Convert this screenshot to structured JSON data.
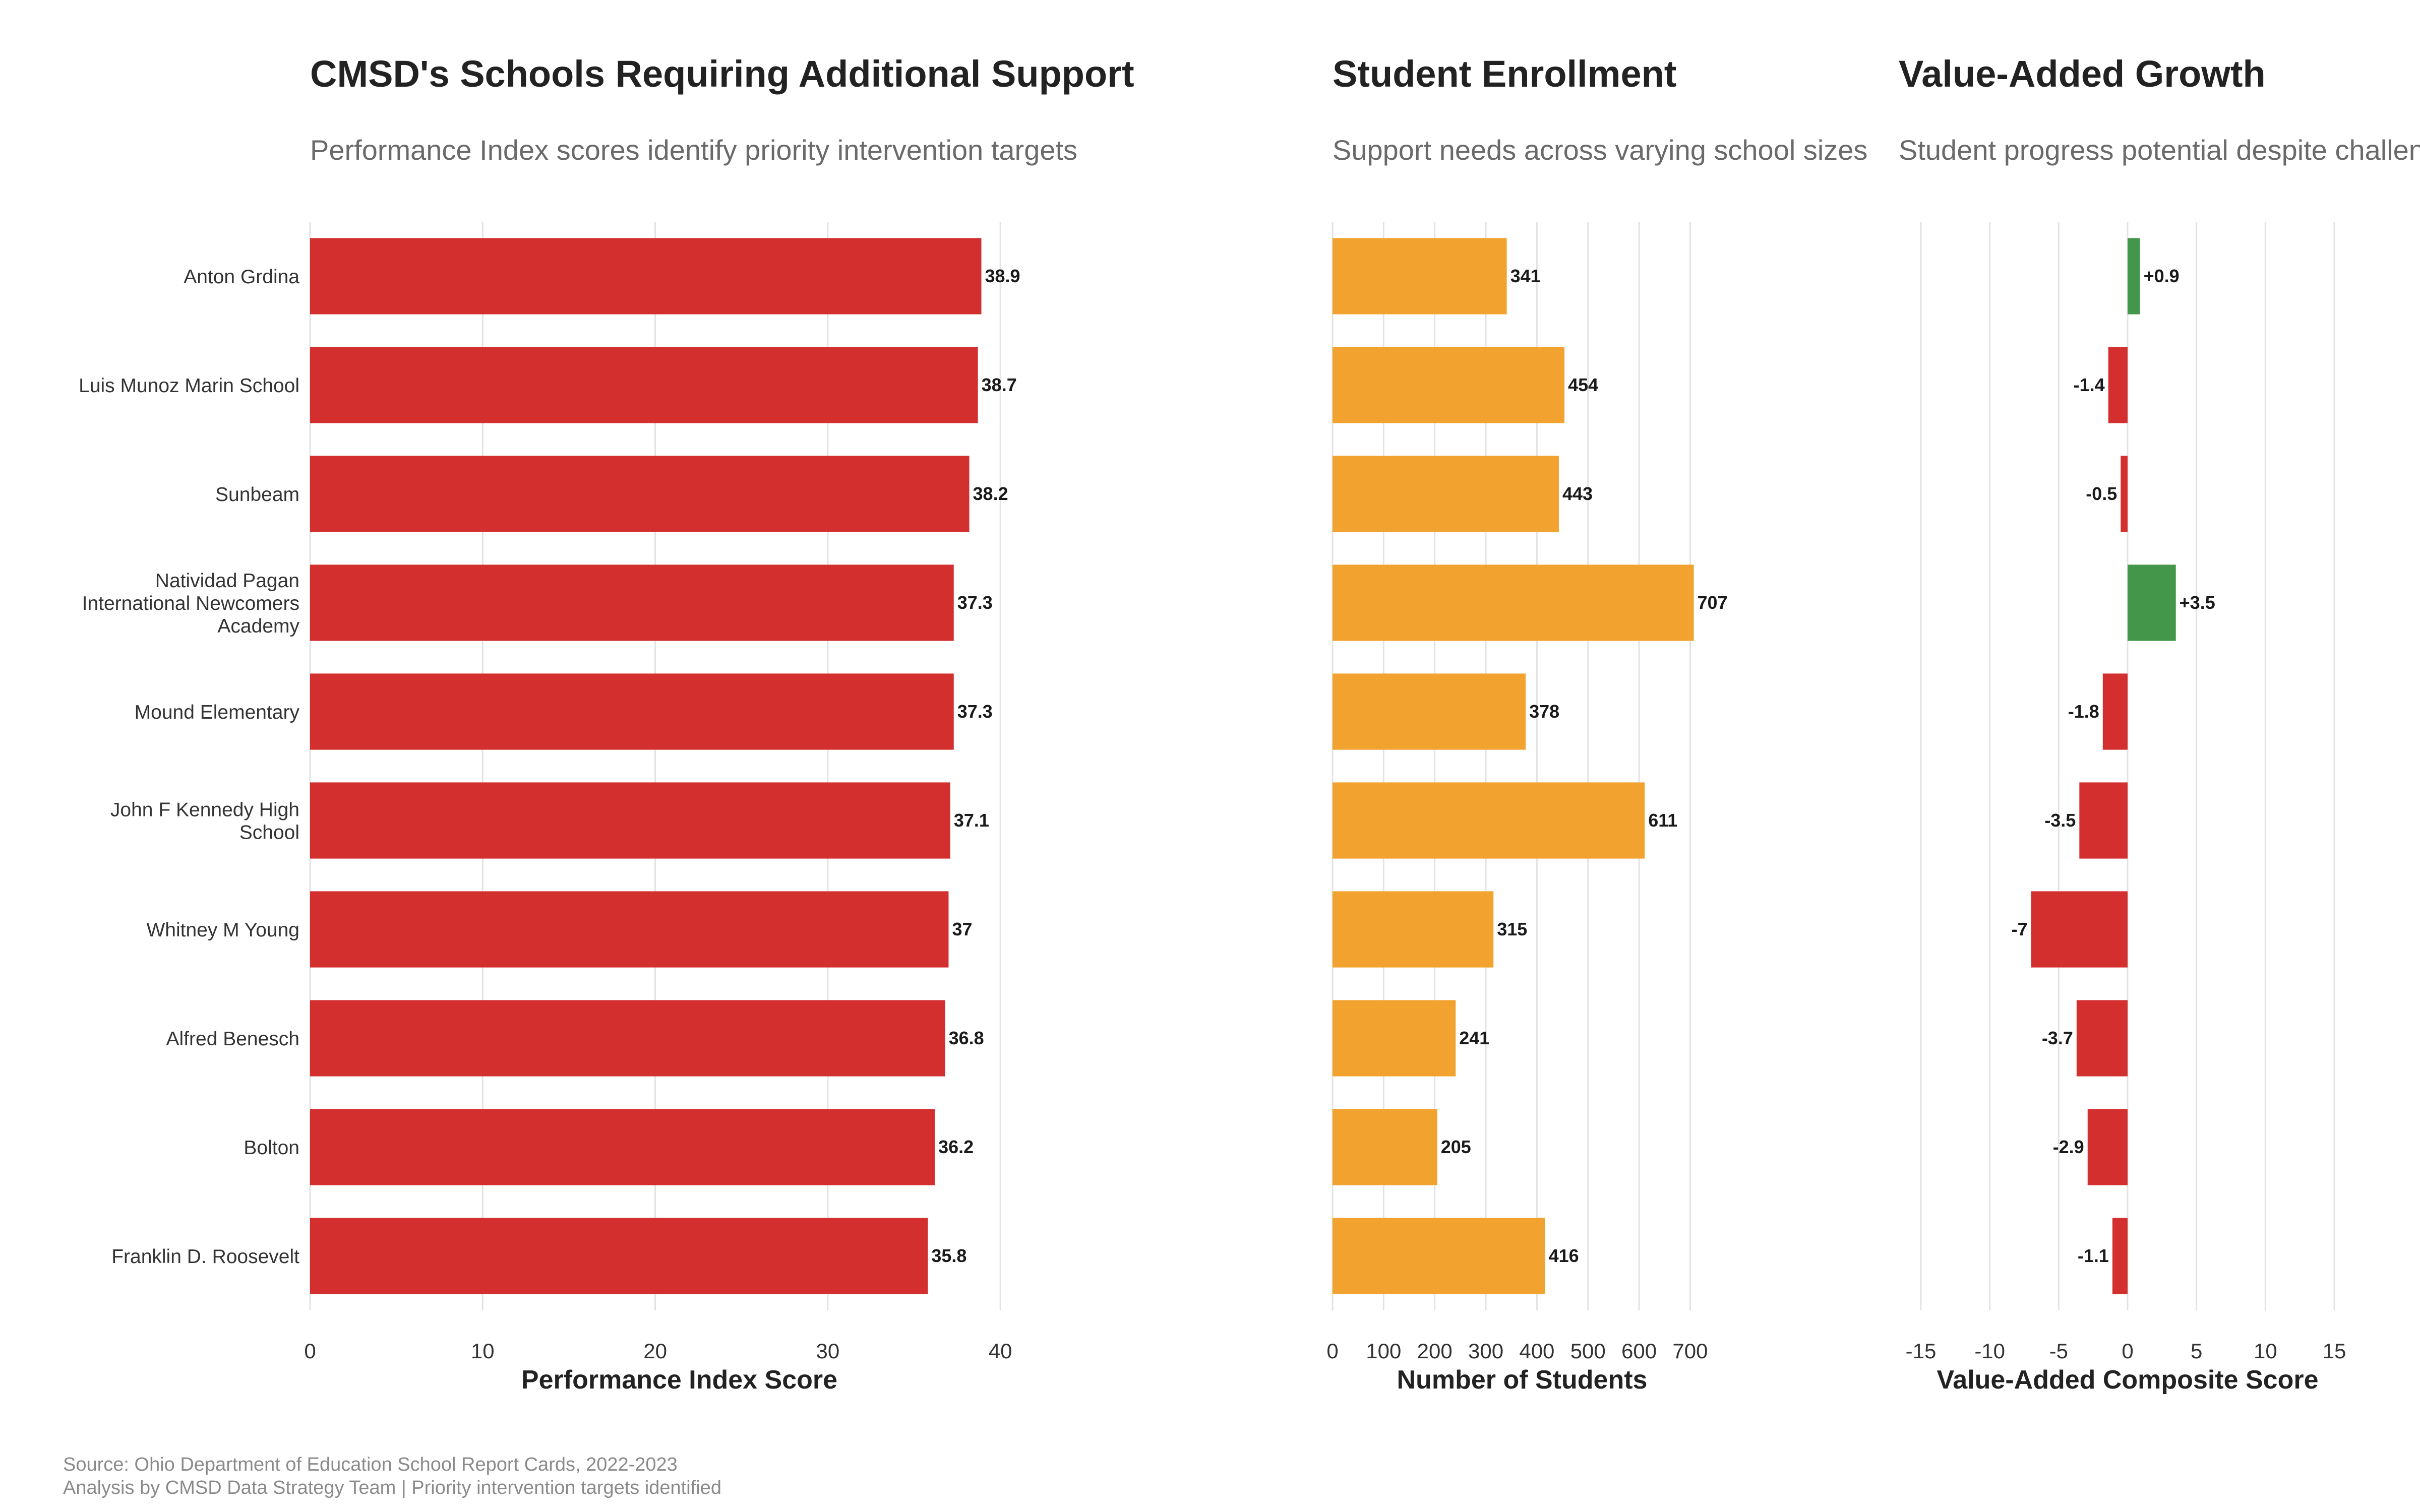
{
  "panels": [
    {
      "title": "CMSD's Schools Requiring Additional Support",
      "subtitle": "Performance Index scores identify priority intervention targets",
      "xlabel": "Performance Index Score"
    },
    {
      "title": "Student Enrollment",
      "subtitle": "Support needs across varying school sizes",
      "xlabel": "Number of Students"
    },
    {
      "title": "Value-Added Growth",
      "subtitle": "Student progress potential despite challenges",
      "xlabel": "Value-Added Composite Score"
    }
  ],
  "caption": {
    "line1": "Source: Ohio Department of Education School Report Cards, 2022-2023",
    "line2": "Analysis by CMSD Data Strategy Team | Priority intervention targets identified"
  },
  "colors": {
    "performance": "#d32f2f",
    "enrollment": "#f2a22e",
    "growth_positive": "#43964a",
    "growth_negative": "#d32f2f",
    "grid": "#e3e3e3"
  },
  "chart_data": [
    {
      "type": "bar",
      "orientation": "horizontal",
      "title": "CMSD's Schools Requiring Additional Support",
      "subtitle": "Performance Index scores identify priority intervention targets",
      "xlabel": "Performance Index Score",
      "categories": [
        "Anton Grdina",
        "Luis Munoz Marin School",
        "Sunbeam",
        "Natividad Pagan\nInternational Newcomers\nAcademy",
        "Mound Elementary",
        "John F Kennedy High\nSchool",
        "Whitney M Young",
        "Alfred Benesch",
        "Bolton",
        "Franklin D. Roosevelt"
      ],
      "values": [
        38.9,
        38.7,
        38.2,
        37.3,
        37.3,
        37.1,
        37,
        36.8,
        36.2,
        35.8
      ],
      "labels": [
        "38.9",
        "38.7",
        "38.2",
        "37.3",
        "37.3",
        "37.1",
        "37",
        "36.8",
        "36.2",
        "35.8"
      ],
      "xlim": [
        0,
        42.8
      ],
      "ticks": [
        0,
        10,
        20,
        30,
        40
      ],
      "tick_labels": [
        "0",
        "10",
        "20",
        "30",
        "40"
      ],
      "grid": true
    },
    {
      "type": "bar",
      "orientation": "horizontal",
      "title": "Student Enrollment",
      "subtitle": "Support needs across varying school sizes",
      "xlabel": "Number of Students",
      "values": [
        341,
        454,
        443,
        707,
        378,
        611,
        315,
        241,
        205,
        416
      ],
      "labels": [
        "341",
        "454",
        "443",
        "707",
        "378",
        "611",
        "315",
        "241",
        "205",
        "416"
      ],
      "xlim": [
        0,
        742
      ],
      "ticks": [
        0,
        100,
        200,
        300,
        400,
        500,
        600,
        700
      ],
      "tick_labels": [
        "0",
        "100",
        "200",
        "300",
        "400",
        "500",
        "600",
        "700"
      ],
      "grid": true
    },
    {
      "type": "bar",
      "orientation": "horizontal",
      "title": "Value-Added Growth",
      "subtitle": "Student progress potential despite challenges",
      "xlabel": "Value-Added Composite Score",
      "values": [
        0.9,
        -1.4,
        -0.5,
        3.5,
        -1.8,
        -3.5,
        -7,
        -3.7,
        -2.9,
        -1.1
      ],
      "labels": [
        "+0.9",
        "-1.4",
        "-0.5",
        "+3.5",
        "-1.8",
        "-3.5",
        "-7",
        "-3.7",
        "-2.9",
        "-1.1"
      ],
      "xlim": [
        -15,
        15
      ],
      "ticks": [
        -15,
        -10,
        -5,
        0,
        5,
        10,
        15
      ],
      "tick_labels": [
        "-15",
        "-10",
        "-5",
        "0",
        "5",
        "10",
        "15"
      ],
      "grid": true
    }
  ]
}
